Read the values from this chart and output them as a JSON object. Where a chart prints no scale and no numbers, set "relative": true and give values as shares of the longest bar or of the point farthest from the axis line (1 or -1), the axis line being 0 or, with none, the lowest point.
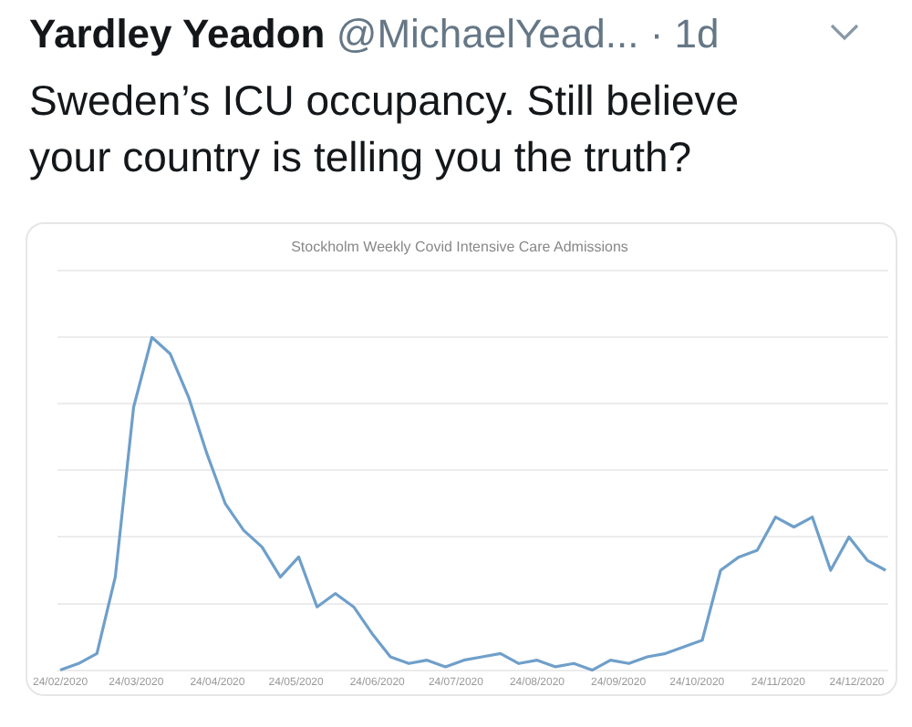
{
  "chart_data": {
    "type": "line",
    "title": "Stockholm Weekly Covid Intensive Care Admissions",
    "annotations": [
      "Yardley Yeadon",
      "@MichaelYead...",
      "· 1d",
      "Sweden’s ICU occupancy. Still believe your country is telling you the truth?"
    ],
    "relative": true,
    "x": [
      "2020-02-24",
      "2020-03-02",
      "2020-03-09",
      "2020-03-16",
      "2020-03-23",
      "2020-03-30",
      "2020-04-06",
      "2020-04-13",
      "2020-04-20",
      "2020-04-27",
      "2020-05-04",
      "2020-05-11",
      "2020-05-18",
      "2020-05-25",
      "2020-06-01",
      "2020-06-08",
      "2020-06-15",
      "2020-06-22",
      "2020-06-29",
      "2020-07-06",
      "2020-07-13",
      "2020-07-20",
      "2020-07-27",
      "2020-08-03",
      "2020-08-10",
      "2020-08-17",
      "2020-08-24",
      "2020-08-31",
      "2020-09-07",
      "2020-09-14",
      "2020-09-21",
      "2020-09-28",
      "2020-10-05",
      "2020-10-12",
      "2020-10-19",
      "2020-10-26",
      "2020-11-02",
      "2020-11-09",
      "2020-11-16",
      "2020-11-23",
      "2020-11-30",
      "2020-12-07",
      "2020-12-14",
      "2020-12-21",
      "2020-12-28",
      "2021-01-04"
    ],
    "xlim": [
      "2020-02-23",
      "2021-01-05"
    ],
    "xticks": [
      {
        "value": "2020-02-24",
        "label": "24/02/2020"
      },
      {
        "value": "2020-03-24",
        "label": "24/03/2020"
      },
      {
        "value": "2020-04-24",
        "label": "24/04/2020"
      },
      {
        "value": "2020-05-24",
        "label": "24/05/2020"
      },
      {
        "value": "2020-06-24",
        "label": "24/06/2020"
      },
      {
        "value": "2020-07-24",
        "label": "24/07/2020"
      },
      {
        "value": "2020-08-24",
        "label": "24/08/2020"
      },
      {
        "value": "2020-09-24",
        "label": "24/09/2020"
      },
      {
        "value": "2020-10-24",
        "label": "24/10/2020"
      },
      {
        "value": "2020-11-24",
        "label": "24/11/2020"
      },
      {
        "value": "2020-12-24",
        "label": "24/12/2020"
      }
    ],
    "series": [
      {
        "color": "#6f9fca",
        "values": [
          0,
          0.02,
          0.05,
          0.28,
          0.79,
          1,
          0.95,
          0.82,
          0.65,
          0.5,
          0.42,
          0.37,
          0.28,
          0.34,
          0.19,
          0.23,
          0.19,
          0.11,
          0.04,
          0.02,
          0.03,
          0.01,
          0.03,
          0.04,
          0.05,
          0.02,
          0.03,
          0.01,
          0.02,
          0,
          0.03,
          0.02,
          0.04,
          0.05,
          0.07,
          0.09,
          0.3,
          0.34,
          0.36,
          0.46,
          0.43,
          0.46,
          0.3,
          0.4,
          0.33,
          0.3
        ]
      }
    ],
    "grid": "y",
    "legend": false,
    "marker": "none",
    "line_style": "solid"
  }
}
